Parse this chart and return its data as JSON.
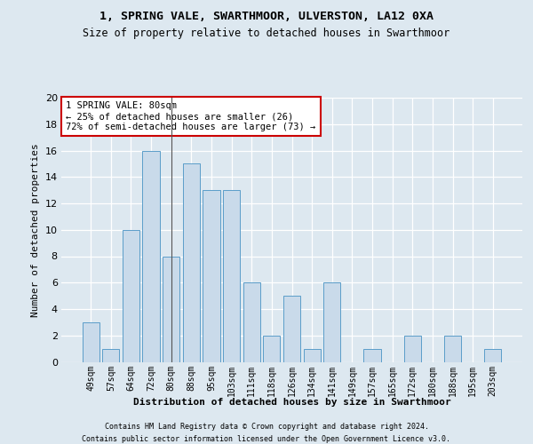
{
  "title1": "1, SPRING VALE, SWARTHMOOR, ULVERSTON, LA12 0XA",
  "title2": "Size of property relative to detached houses in Swarthmoor",
  "xlabel": "Distribution of detached houses by size in Swarthmoor",
  "ylabel": "Number of detached properties",
  "categories": [
    "49sqm",
    "57sqm",
    "64sqm",
    "72sqm",
    "80sqm",
    "88sqm",
    "95sqm",
    "103sqm",
    "111sqm",
    "118sqm",
    "126sqm",
    "134sqm",
    "141sqm",
    "149sqm",
    "157sqm",
    "165sqm",
    "172sqm",
    "180sqm",
    "188sqm",
    "195sqm",
    "203sqm"
  ],
  "values": [
    3,
    1,
    10,
    16,
    8,
    15,
    13,
    13,
    6,
    2,
    5,
    1,
    6,
    0,
    1,
    0,
    2,
    0,
    2,
    0,
    1
  ],
  "highlight_index": 4,
  "bar_color": "#c9daea",
  "bar_edge_color": "#5b9dc9",
  "highlight_line_color": "#555555",
  "background_color": "#dde8f0",
  "plot_bg_color": "#dde8f0",
  "annotation_text": "1 SPRING VALE: 80sqm\n← 25% of detached houses are smaller (26)\n72% of semi-detached houses are larger (73) →",
  "annotation_box_facecolor": "#ffffff",
  "annotation_box_edgecolor": "#cc0000",
  "footer1": "Contains HM Land Registry data © Crown copyright and database right 2024.",
  "footer2": "Contains public sector information licensed under the Open Government Licence v3.0.",
  "ylim": [
    0,
    20
  ],
  "yticks": [
    0,
    2,
    4,
    6,
    8,
    10,
    12,
    14,
    16,
    18,
    20
  ]
}
